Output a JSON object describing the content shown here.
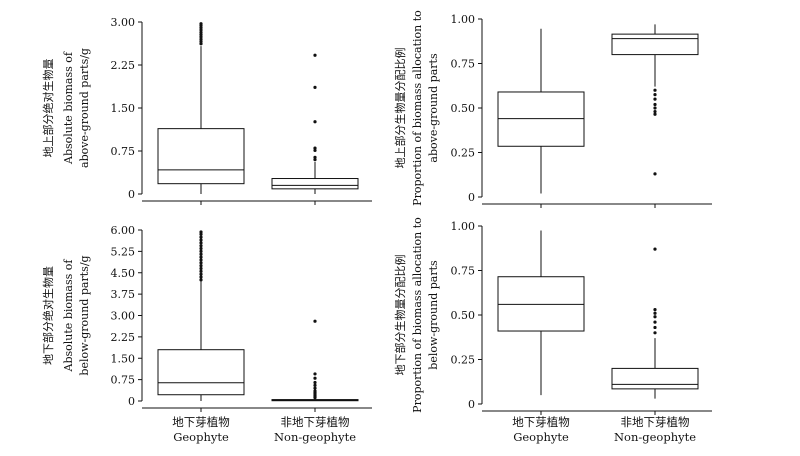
{
  "chart_data": [
    {
      "type": "box",
      "ylabel": [
        "地上部分绝对生物量",
        "Absolute biomass of",
        "above-ground parts/g"
      ],
      "ylim": [
        0,
        3.0
      ],
      "yticks": [
        "0",
        "0.75",
        "1.50",
        "2.25",
        "3.00"
      ],
      "ytick_values": [
        0,
        0.75,
        1.5,
        2.25,
        3.0
      ],
      "categories": [
        "Geophyte",
        "Non-geophyte"
      ],
      "boxes": [
        {
          "whisker_low": 0.0,
          "q1": 0.18,
          "median": 0.42,
          "q3": 1.14,
          "whisker_high": 2.58,
          "outliers": [
            2.62,
            2.66,
            2.7,
            2.74,
            2.78,
            2.82,
            2.86,
            2.9,
            2.94,
            2.97
          ]
        },
        {
          "whisker_low": 0.0,
          "q1": 0.09,
          "median": 0.15,
          "q3": 0.27,
          "whisker_high": 0.56,
          "outliers": [
            0.6,
            0.64,
            0.76,
            0.8,
            1.26,
            1.86,
            2.42
          ]
        }
      ]
    },
    {
      "type": "box",
      "ylabel": [
        "地上部分生物量分配比例",
        "Proportion of biomass allocation to",
        "above-ground parts"
      ],
      "ylim": [
        0,
        1.0
      ],
      "yticks": [
        "0",
        "0.25",
        "0.50",
        "0.75",
        "1.00"
      ],
      "ytick_values": [
        0,
        0.25,
        0.5,
        0.75,
        1.0
      ],
      "categories": [
        "Geophyte",
        "Non-geophyte"
      ],
      "boxes": [
        {
          "whisker_low": 0.02,
          "q1": 0.285,
          "median": 0.44,
          "q3": 0.59,
          "whisker_high": 0.945,
          "outliers": []
        },
        {
          "whisker_low": 0.62,
          "q1": 0.8,
          "median": 0.89,
          "q3": 0.915,
          "whisker_high": 0.97,
          "outliers": [
            0.6,
            0.575,
            0.55,
            0.52,
            0.5,
            0.48,
            0.465,
            0.13
          ]
        }
      ]
    },
    {
      "type": "box",
      "ylabel": [
        "地下部分绝对生物量",
        "Absolute biomass of",
        "below-ground parts/g"
      ],
      "ylim": [
        0,
        6.0
      ],
      "yticks": [
        "0",
        "0.75",
        "1.50",
        "2.25",
        "3.00",
        "3.75",
        "4.50",
        "5.25",
        "6.00"
      ],
      "ytick_values": [
        0,
        0.75,
        1.5,
        2.25,
        3.0,
        3.75,
        4.5,
        5.25,
        6.0
      ],
      "categories": [
        "Geophyte",
        "Non-geophyte"
      ],
      "boxes": [
        {
          "whisker_low": 0.0,
          "q1": 0.22,
          "median": 0.64,
          "q3": 1.8,
          "whisker_high": 4.2,
          "outliers": [
            4.25,
            4.35,
            4.45,
            4.55,
            4.65,
            4.75,
            4.85,
            4.95,
            5.05,
            5.15,
            5.25,
            5.35,
            5.45,
            5.55,
            5.65,
            5.75,
            5.85,
            5.93
          ]
        },
        {
          "whisker_low": 0.0,
          "q1": 0.01,
          "median": 0.02,
          "q3": 0.05,
          "whisker_high": 0.1,
          "outliers": [
            0.12,
            0.15,
            0.2,
            0.25,
            0.3,
            0.35,
            0.45,
            0.55,
            0.65,
            0.8,
            0.95,
            2.8
          ]
        }
      ]
    },
    {
      "type": "box",
      "ylabel": [
        "地下部分生物量分配比例",
        "Proportion of biomass allocation to",
        "below-ground parts"
      ],
      "ylim": [
        0,
        1.0
      ],
      "yticks": [
        "0",
        "0.25",
        "0.50",
        "0.75",
        "1.00"
      ],
      "ytick_values": [
        0,
        0.25,
        0.5,
        0.75,
        1.0
      ],
      "categories": [
        "Geophyte",
        "Non-geophyte"
      ],
      "boxes": [
        {
          "whisker_low": 0.05,
          "q1": 0.41,
          "median": 0.56,
          "q3": 0.715,
          "whisker_high": 0.975,
          "outliers": []
        },
        {
          "whisker_low": 0.03,
          "q1": 0.085,
          "median": 0.11,
          "q3": 0.2,
          "whisker_high": 0.37,
          "outliers": [
            0.4,
            0.43,
            0.46,
            0.49,
            0.51,
            0.53,
            0.87
          ]
        }
      ]
    }
  ],
  "x_labels": {
    "left": [
      {
        "zh": "地下芽植物",
        "en": "Geophyte"
      },
      {
        "zh": "非地下芽植物",
        "en": "Non-geophyte"
      }
    ],
    "right": [
      {
        "zh": "地下芽植物",
        "en": "Geophyte"
      },
      {
        "zh": "非地下芽植物",
        "en": "Non-geophyte"
      }
    ]
  }
}
